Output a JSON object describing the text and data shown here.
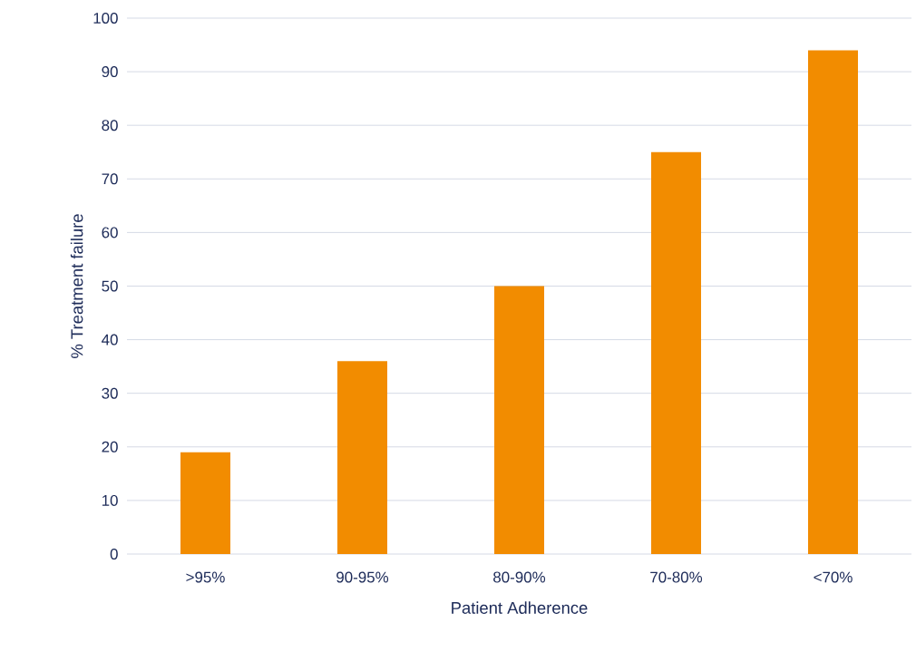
{
  "chart_data": {
    "type": "bar",
    "xlabel": "Patient Adherence",
    "ylabel": "% Treatment failure",
    "categories": [
      ">95%",
      "90-95%",
      "80-90%",
      "70-80%",
      "<70%"
    ],
    "values": [
      19,
      36,
      50,
      75,
      94
    ],
    "color": "#f28c00",
    "ylim": [
      0,
      100
    ],
    "yticks": [
      0,
      10,
      20,
      30,
      40,
      50,
      60,
      70,
      80,
      90,
      100
    ],
    "grid": "y"
  }
}
